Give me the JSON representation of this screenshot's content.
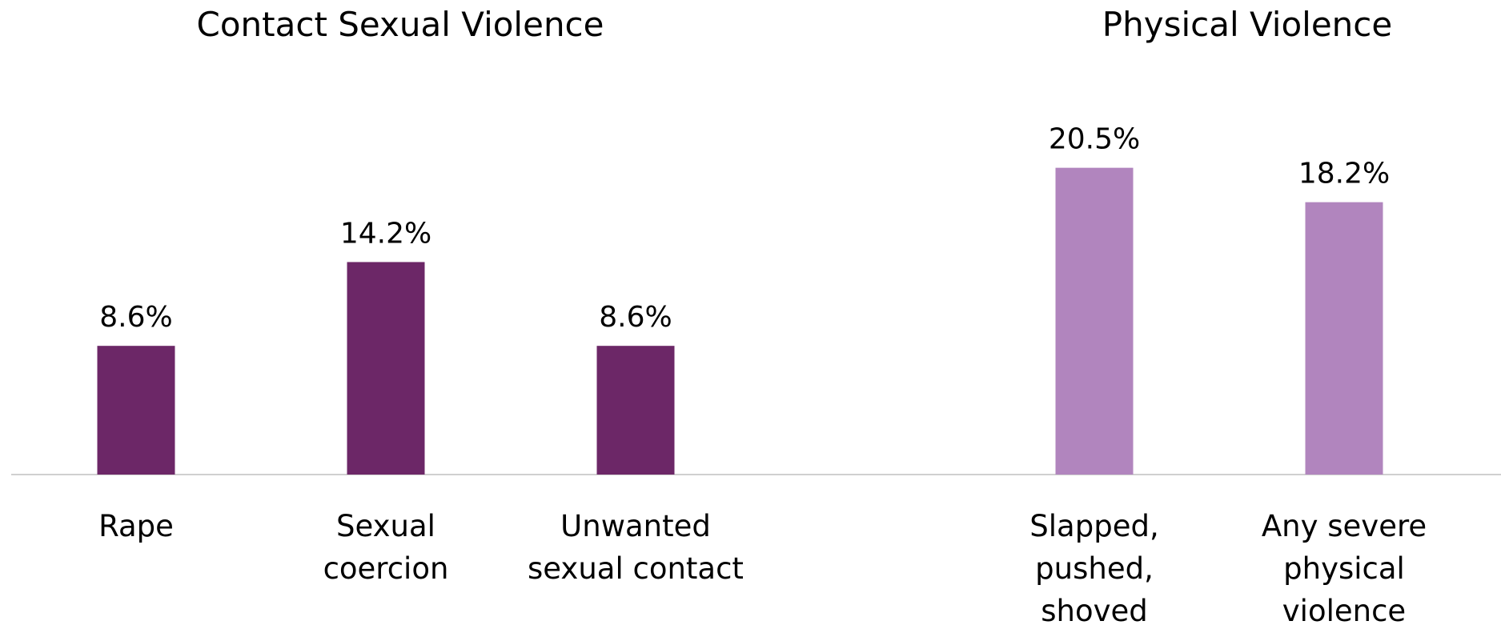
{
  "chart_data": {
    "type": "bar",
    "groups": [
      {
        "title": "Contact Sexual Violence",
        "color": "#6c2767",
        "categories": [
          [
            "Rape"
          ],
          [
            "Sexual",
            "coercion"
          ],
          [
            "Unwanted",
            "sexual contact"
          ]
        ],
        "values": [
          8.6,
          14.2,
          8.6
        ],
        "labels": [
          "8.6%",
          "14.2%",
          "8.6%"
        ]
      },
      {
        "title": "Physical Violence",
        "color": "#b185be",
        "categories": [
          [
            "Slapped,",
            "pushed,",
            "shoved"
          ],
          [
            "Any severe",
            "physical",
            "violence"
          ]
        ],
        "values": [
          20.5,
          18.2
        ],
        "labels": [
          "20.5%",
          "18.2%"
        ]
      }
    ],
    "ylim": [
      0,
      23
    ],
    "grid": false,
    "legend": "none"
  }
}
